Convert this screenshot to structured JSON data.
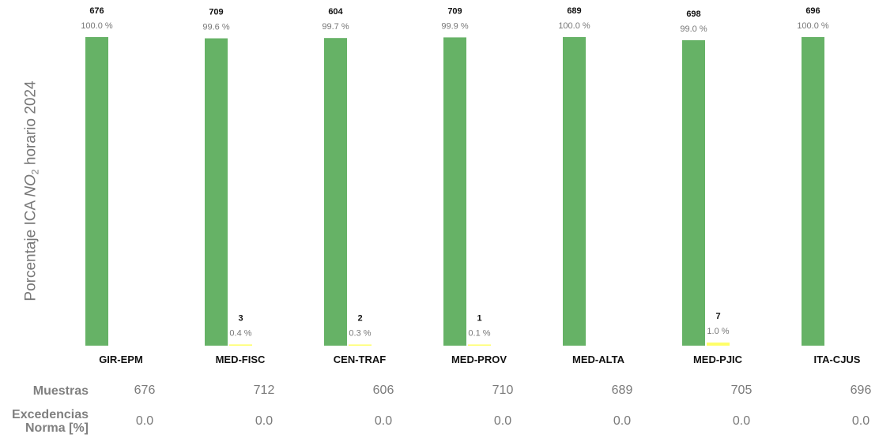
{
  "ylabel": {
    "prefix": "Porcentaje ICA ",
    "italic": "NO",
    "sub": "2",
    "suffix": " horario 2024"
  },
  "chart_data": {
    "type": "bar",
    "ylabel": "Porcentaje ICA NO2 horario 2024",
    "ylim": [
      0,
      100
    ],
    "grid": false,
    "categories": [
      "GIR-EPM",
      "MED-FISC",
      "CEN-TRAF",
      "MED-PROV",
      "MED-ALTA",
      "MED-PJIC",
      "ITA-CJUS"
    ],
    "series": [
      {
        "color": "#66b266",
        "values": [
          100.0,
          99.6,
          99.7,
          99.9,
          100.0,
          99.0,
          100.0
        ],
        "counts": [
          676,
          709,
          604,
          709,
          689,
          698,
          696
        ],
        "pct_labels": [
          "100.0 %",
          "99.6 %",
          "99.7 %",
          "99.9 %",
          "100.0 %",
          "99.0 %",
          "100.0 %"
        ]
      },
      {
        "color": "#ffff66",
        "values": [
          0.0,
          0.4,
          0.3,
          0.1,
          0.0,
          1.0,
          0.0
        ],
        "counts": [
          null,
          3,
          2,
          1,
          null,
          7,
          null
        ],
        "pct_labels": [
          null,
          "0.4 %",
          "0.3 %",
          "0.1 %",
          null,
          "1.0 %",
          null
        ]
      }
    ]
  },
  "table": {
    "rows": [
      {
        "label": "Muestras",
        "values": [
          "676",
          "712",
          "606",
          "710",
          "689",
          "705",
          "696"
        ]
      },
      {
        "label": "Excedencias\nNorma [%]",
        "values": [
          "0.0",
          "0.0",
          "0.0",
          "0.0",
          "0.0",
          "0.0",
          "0.0"
        ]
      }
    ]
  }
}
